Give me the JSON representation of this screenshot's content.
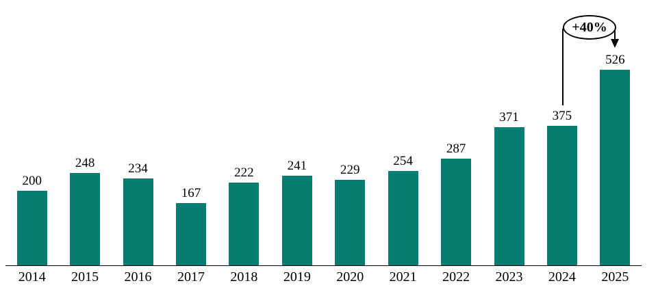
{
  "chart_data": {
    "type": "bar",
    "title": "",
    "xlabel": "",
    "ylabel": "",
    "categories": [
      "2014",
      "2015",
      "2016",
      "2017",
      "2018",
      "2019",
      "2020",
      "2021",
      "2022",
      "2023",
      "2024",
      "2025"
    ],
    "values": [
      200,
      248,
      234,
      167,
      222,
      241,
      229,
      254,
      287,
      371,
      375,
      526
    ],
    "ylim": [
      0,
      560
    ],
    "grid": false,
    "legend": false,
    "bar_color": "#077D72",
    "axis_color": "#000000",
    "text_color": "#000000",
    "annotation": {
      "label": "+40%",
      "shape": "ellipse-callout",
      "from_category": "2024",
      "to_category": "2025"
    }
  }
}
